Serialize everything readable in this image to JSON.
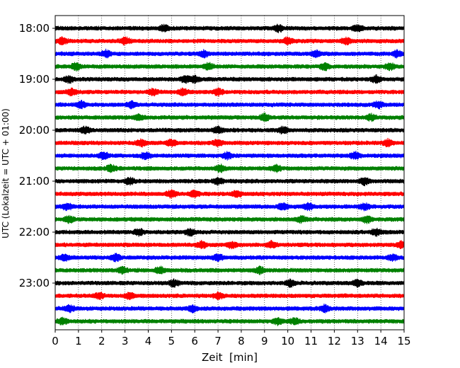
{
  "chart_data": {
    "type": "line",
    "title": "",
    "xlabel": "Zeit  [min]",
    "ylabel": "UTC (Lokalzeit = UTC + 01:00)",
    "xlim": [
      0,
      15
    ],
    "xticks": [
      0,
      1,
      2,
      3,
      4,
      5,
      6,
      7,
      8,
      9,
      10,
      11,
      12,
      13,
      14,
      15
    ],
    "xtick_labels": [
      "0",
      "1",
      "2",
      "3",
      "4",
      "5",
      "6",
      "7",
      "8",
      "9",
      "10",
      "11",
      "12",
      "13",
      "14",
      "15"
    ],
    "ytick_labels": [
      "18:00",
      "19:00",
      "20:00",
      "21:00",
      "22:00",
      "23:00"
    ],
    "trace_interval_minutes": 15,
    "first_trace_time": "18:00",
    "trace_count": 24,
    "color_cycle": [
      "#000000",
      "#ff0000",
      "#0000ff",
      "#008000"
    ],
    "grid": "vertical dotted lines at each minute",
    "series": [
      {
        "start": "18:00",
        "color": "#000000",
        "events_min": [
          4.7,
          9.6,
          13.0
        ]
      },
      {
        "start": "18:15",
        "color": "#ff0000",
        "events_min": [
          0.3,
          3.0,
          10.0,
          12.5
        ]
      },
      {
        "start": "18:30",
        "color": "#0000ff",
        "events_min": [
          2.2,
          6.4,
          11.2,
          14.7
        ]
      },
      {
        "start": "18:45",
        "color": "#008000",
        "events_min": [
          0.9,
          6.6,
          11.6,
          14.4
        ]
      },
      {
        "start": "19:00",
        "color": "#000000",
        "events_min": [
          0.6,
          5.6,
          6.0,
          13.8
        ]
      },
      {
        "start": "19:15",
        "color": "#ff0000",
        "events_min": [
          0.7,
          4.2,
          5.5,
          7.0
        ]
      },
      {
        "start": "19:30",
        "color": "#0000ff",
        "events_min": [
          1.1,
          3.3,
          13.9
        ]
      },
      {
        "start": "19:45",
        "color": "#008000",
        "events_min": [
          3.6,
          9.0,
          13.6
        ]
      },
      {
        "start": "20:00",
        "color": "#000000",
        "events_min": [
          1.3,
          7.0,
          9.8
        ]
      },
      {
        "start": "20:15",
        "color": "#ff0000",
        "events_min": [
          3.7,
          5.0,
          7.0,
          14.3
        ]
      },
      {
        "start": "20:30",
        "color": "#0000ff",
        "events_min": [
          2.1,
          3.9,
          7.4,
          12.9
        ]
      },
      {
        "start": "20:45",
        "color": "#008000",
        "events_min": [
          2.4,
          7.1,
          9.5
        ]
      },
      {
        "start": "21:00",
        "color": "#000000",
        "events_min": [
          3.2,
          7.0,
          13.3
        ]
      },
      {
        "start": "21:15",
        "color": "#ff0000",
        "events_min": [
          5.0,
          6.0,
          7.8
        ]
      },
      {
        "start": "21:30",
        "color": "#0000ff",
        "events_min": [
          0.5,
          9.8,
          10.9,
          13.3
        ]
      },
      {
        "start": "21:45",
        "color": "#008000",
        "events_min": [
          0.6,
          10.6,
          13.4
        ]
      },
      {
        "start": "22:00",
        "color": "#000000",
        "events_min": [
          3.6,
          5.8,
          13.8
        ]
      },
      {
        "start": "22:15",
        "color": "#ff0000",
        "events_min": [
          6.3,
          7.6,
          9.3,
          14.9
        ]
      },
      {
        "start": "22:30",
        "color": "#0000ff",
        "events_min": [
          0.4,
          2.6,
          7.0,
          14.5
        ]
      },
      {
        "start": "22:45",
        "color": "#008000",
        "events_min": [
          2.9,
          4.5,
          8.8
        ]
      },
      {
        "start": "23:00",
        "color": "#000000",
        "events_min": [
          5.1,
          10.1,
          13.0
        ]
      },
      {
        "start": "23:15",
        "color": "#ff0000",
        "events_min": [
          1.9,
          3.2,
          7.0
        ]
      },
      {
        "start": "23:30",
        "color": "#0000ff",
        "events_min": [
          0.6,
          5.9,
          11.6
        ]
      },
      {
        "start": "23:45",
        "color": "#008000",
        "events_min": [
          0.3,
          9.6,
          10.3
        ]
      }
    ]
  }
}
